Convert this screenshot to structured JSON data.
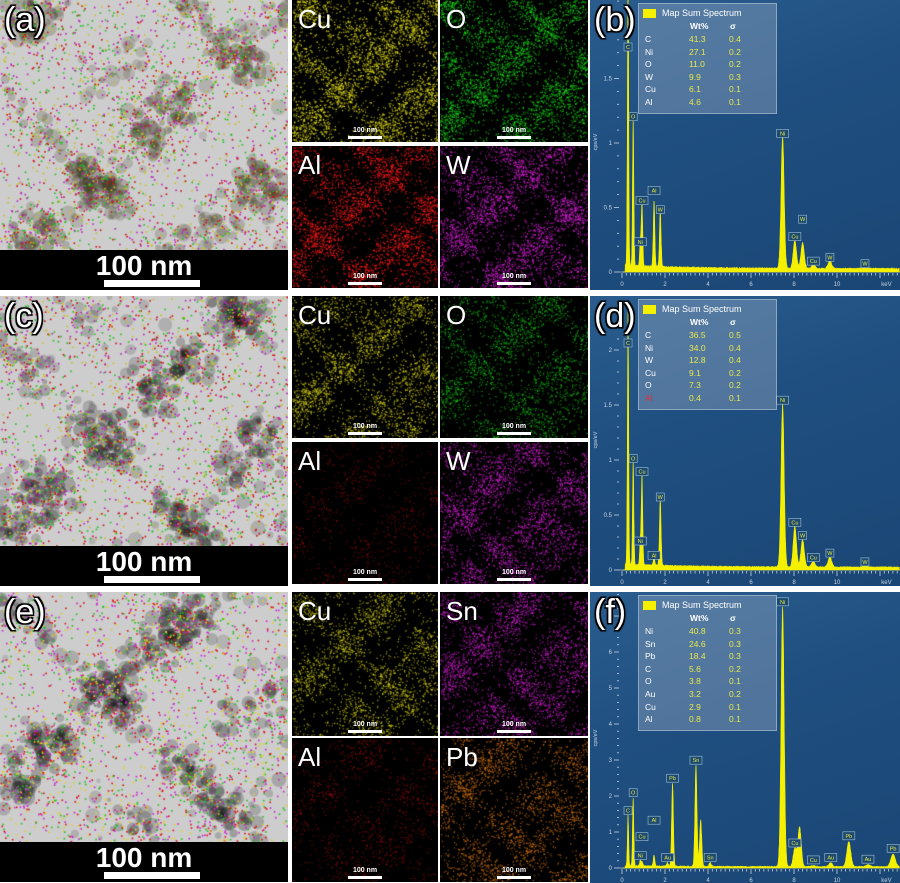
{
  "panels": [
    {
      "tem_label": "(a)",
      "scale_bar": "100 nm",
      "maps": [
        {
          "element": "Cu",
          "color": "#e6e21a",
          "scale_bar": "100 nm"
        },
        {
          "element": "O",
          "color": "#19d219",
          "scale_bar": "100 nm"
        },
        {
          "element": "Al",
          "color": "#ff1a1a",
          "scale_bar": "100 nm"
        },
        {
          "element": "W",
          "color": "#d21ed2",
          "scale_bar": "100 nm"
        }
      ]
    },
    {
      "tem_label": "(c)",
      "scale_bar": "100 nm",
      "maps": [
        {
          "element": "Cu",
          "color": "#e6e21a",
          "scale_bar": "100 nm"
        },
        {
          "element": "O",
          "color": "#19c819",
          "scale_bar": "100 nm"
        },
        {
          "element": "Al",
          "color": "#c81414",
          "scale_bar": "100 nm"
        },
        {
          "element": "W",
          "color": "#d21ed2",
          "scale_bar": "100 nm"
        }
      ]
    },
    {
      "tem_label": "(e)",
      "scale_bar": "100 nm",
      "maps": [
        {
          "element": "Cu",
          "color": "#e6e21a",
          "scale_bar": "100 nm"
        },
        {
          "element": "Sn",
          "color": "#c81ec8",
          "scale_bar": "100 nm"
        },
        {
          "element": "Al",
          "color": "#c81414",
          "scale_bar": "100 nm"
        },
        {
          "element": "Pb",
          "color": "#e07a14",
          "scale_bar": "100 nm"
        }
      ]
    }
  ],
  "chart_data": [
    {
      "panel_label": "(b)",
      "type": "line",
      "legend_title": "Map Sum Spectrum",
      "legend_placement": "top-left",
      "series_color": "#f5f000",
      "xlabel": "keV",
      "ylabel": "cps/eV",
      "xticks": [
        "0",
        "2",
        "4",
        "6",
        "8",
        "10"
      ],
      "yticks": [
        "0",
        "0.5",
        "1",
        "1.5"
      ],
      "xlim": [
        0,
        12.8
      ],
      "ylim": [
        0,
        2.1
      ],
      "table_header": {
        "wt": "Wt%",
        "sigma": "σ"
      },
      "composition": [
        {
          "element": "C",
          "wt": "41.3",
          "sigma": "0.4"
        },
        {
          "element": "Ni",
          "wt": "27.1",
          "sigma": "0.2"
        },
        {
          "element": "O",
          "wt": "11.0",
          "sigma": "0.2"
        },
        {
          "element": "W",
          "wt": "9.9",
          "sigma": "0.3"
        },
        {
          "element": "Cu",
          "wt": "6.1",
          "sigma": "0.1"
        },
        {
          "element": "Al",
          "wt": "4.6",
          "sigma": "0.1"
        }
      ],
      "peaks": [
        {
          "label": "C",
          "energy": 0.28,
          "height": 2.3
        },
        {
          "label": "O",
          "energy": 0.52,
          "height": 1.15
        },
        {
          "label": "Ni",
          "energy": 0.85,
          "height": 0.18
        },
        {
          "label": "Cu",
          "energy": 0.93,
          "height": 0.5
        },
        {
          "label": "Al",
          "energy": 1.49,
          "height": 0.5
        },
        {
          "label": "W",
          "energy": 1.78,
          "height": 0.43
        },
        {
          "label": "Ni",
          "energy": 7.47,
          "height": 1.02
        },
        {
          "label": "Cu",
          "energy": 8.04,
          "height": 0.22
        },
        {
          "label": "W",
          "energy": 8.4,
          "height": 0.2
        },
        {
          "label": "Cu",
          "energy": 8.9,
          "height": 0.03
        },
        {
          "label": "W",
          "energy": 9.67,
          "height": 0.06
        },
        {
          "label": "W",
          "energy": 11.3,
          "height": 0.01
        }
      ]
    },
    {
      "panel_label": "(d)",
      "type": "line",
      "legend_title": "Map Sum Spectrum",
      "legend_placement": "top-left",
      "series_color": "#f5f000",
      "xlabel": "keV",
      "ylabel": "cps/eV",
      "xticks": [
        "0",
        "2",
        "4",
        "6",
        "8",
        "10"
      ],
      "yticks": [
        "0",
        "0.5",
        "1",
        "1.5",
        "2"
      ],
      "xlim": [
        0,
        12.8
      ],
      "ylim": [
        0,
        2.15
      ],
      "table_header": {
        "wt": "Wt%",
        "sigma": "σ"
      },
      "composition": [
        {
          "element": "C",
          "wt": "36.5",
          "sigma": "0.5"
        },
        {
          "element": "Ni",
          "wt": "34.0",
          "sigma": "0.4"
        },
        {
          "element": "W",
          "wt": "12.8",
          "sigma": "0.4"
        },
        {
          "element": "Cu",
          "wt": "9.1",
          "sigma": "0.2"
        },
        {
          "element": "O",
          "wt": "7.3",
          "sigma": "0.2"
        },
        {
          "element": "Al",
          "wt": "0.4",
          "sigma": "0.1",
          "highlight": "#e0303a"
        }
      ],
      "peaks": [
        {
          "label": "C",
          "energy": 0.28,
          "height": 2.3
        },
        {
          "label": "O",
          "energy": 0.52,
          "height": 0.95
        },
        {
          "label": "Ni",
          "energy": 0.85,
          "height": 0.2
        },
        {
          "label": "Cu",
          "energy": 0.93,
          "height": 0.83
        },
        {
          "label": "Al",
          "energy": 1.49,
          "height": 0.07
        },
        {
          "label": "W",
          "energy": 1.78,
          "height": 0.6
        },
        {
          "label": "Ni",
          "energy": 7.47,
          "height": 1.48
        },
        {
          "label": "Cu",
          "energy": 8.04,
          "height": 0.37
        },
        {
          "label": "W",
          "energy": 8.4,
          "height": 0.25
        },
        {
          "label": "Cu",
          "energy": 8.9,
          "height": 0.05
        },
        {
          "label": "W",
          "energy": 9.67,
          "height": 0.09
        },
        {
          "label": "W",
          "energy": 11.3,
          "height": 0.01
        }
      ]
    },
    {
      "panel_label": "(f)",
      "type": "line",
      "legend_title": "Map Sum Spectrum",
      "legend_placement": "top-left",
      "series_color": "#f5f000",
      "xlabel": "keV",
      "ylabel": "cps/eV",
      "xticks": [
        "0",
        "2",
        "4",
        "6",
        "8",
        "10"
      ],
      "yticks": [
        "0",
        "1",
        "2",
        "3",
        "4",
        "5",
        "6"
      ],
      "xlim": [
        0,
        12.8
      ],
      "ylim": [
        0,
        7.5
      ],
      "table_header": {
        "wt": "Wt%",
        "sigma": "σ"
      },
      "composition": [
        {
          "element": "Ni",
          "wt": "40.8",
          "sigma": "0.3"
        },
        {
          "element": "Sn",
          "wt": "24.6",
          "sigma": "0.3"
        },
        {
          "element": "Pb",
          "wt": "18.4",
          "sigma": "0.3"
        },
        {
          "element": "C",
          "wt": "5.6",
          "sigma": "0.2"
        },
        {
          "element": "O",
          "wt": "3.8",
          "sigma": "0.1"
        },
        {
          "element": "Au",
          "wt": "3.2",
          "sigma": "0.2"
        },
        {
          "element": "Cu",
          "wt": "2.9",
          "sigma": "0.1"
        },
        {
          "element": "Al",
          "wt": "0.8",
          "sigma": "0.1"
        }
      ],
      "peaks": [
        {
          "label": "C",
          "energy": 0.28,
          "height": 1.4
        },
        {
          "label": "O",
          "energy": 0.52,
          "height": 1.9
        },
        {
          "label": "Ni",
          "energy": 0.85,
          "height": 0.15
        },
        {
          "label": "Cu",
          "energy": 0.93,
          "height": 0.12
        },
        {
          "label": "Al",
          "energy": 1.49,
          "height": 0.3
        },
        {
          "label": "Au",
          "energy": 2.12,
          "height": 0.1
        },
        {
          "label": "Pb",
          "energy": 2.35,
          "height": 2.3
        },
        {
          "label": "Sn",
          "energy": 3.44,
          "height": 2.8
        },
        {
          "label": "",
          "energy": 3.66,
          "height": 1.3
        },
        {
          "label": "Sn",
          "energy": 4.1,
          "height": 0.1
        },
        {
          "label": "Ni",
          "energy": 7.47,
          "height": 7.2
        },
        {
          "label": "Cu",
          "energy": 8.04,
          "height": 0.5
        },
        {
          "label": "",
          "energy": 8.26,
          "height": 1.1
        },
        {
          "label": "Cu",
          "energy": 8.9,
          "height": 0.03
        },
        {
          "label": "Au",
          "energy": 9.71,
          "height": 0.1
        },
        {
          "label": "Pb",
          "energy": 10.55,
          "height": 0.7
        },
        {
          "label": "Au",
          "energy": 11.44,
          "height": 0.05
        },
        {
          "label": "Pb",
          "energy": 12.61,
          "height": 0.35
        }
      ]
    }
  ]
}
